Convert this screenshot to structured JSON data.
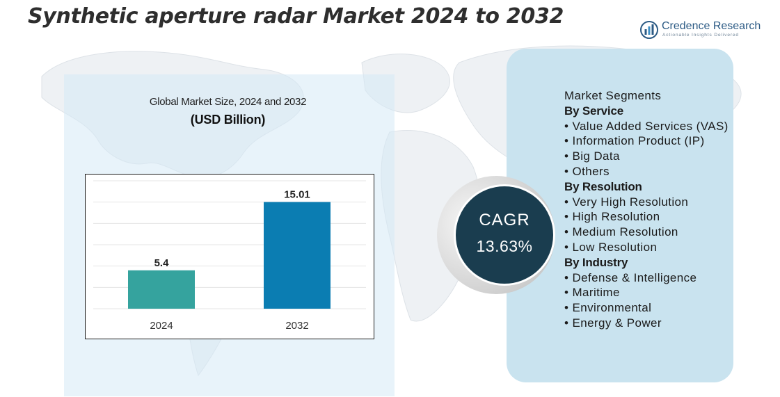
{
  "header": {
    "title": "Synthetic aperture radar Market 2024 to 2032"
  },
  "logo": {
    "name": "Credence Research",
    "tagline": "Actionable Insights Delivered",
    "icon": "bar-chart-circle-icon"
  },
  "colors": {
    "bar_2024": "#35a39e",
    "bar_2032": "#0b7db2",
    "cagr_circle": "#1a3d4f",
    "panel": "#c9e3ef"
  },
  "chart_data": {
    "type": "bar",
    "title": "Global Market Size, 2024 and 2032",
    "subtitle": "(USD Billion)",
    "categories": [
      "2024",
      "2032"
    ],
    "values": [
      5.4,
      15.01
    ],
    "data_labels": [
      "5.4",
      "15.01"
    ],
    "ylim": [
      0,
      18
    ],
    "grid": true
  },
  "cagr": {
    "label": "CAGR",
    "value": "13.63%"
  },
  "segments": {
    "heading": "Market Segments",
    "groups": [
      {
        "title": "By Service",
        "items": [
          "• Value Added Services (VAS)",
          "• Information Product (IP)",
          "• Big Data",
          "• Others"
        ]
      },
      {
        "title": "By Resolution",
        "items": [
          "• Very High Resolution",
          "• High Resolution",
          "• Medium Resolution",
          "• Low Resolution"
        ]
      },
      {
        "title": "By Industry",
        "items": [
          "• Defense & Intelligence",
          "• Maritime",
          "• Environmental",
          "• Energy & Power"
        ]
      }
    ]
  }
}
